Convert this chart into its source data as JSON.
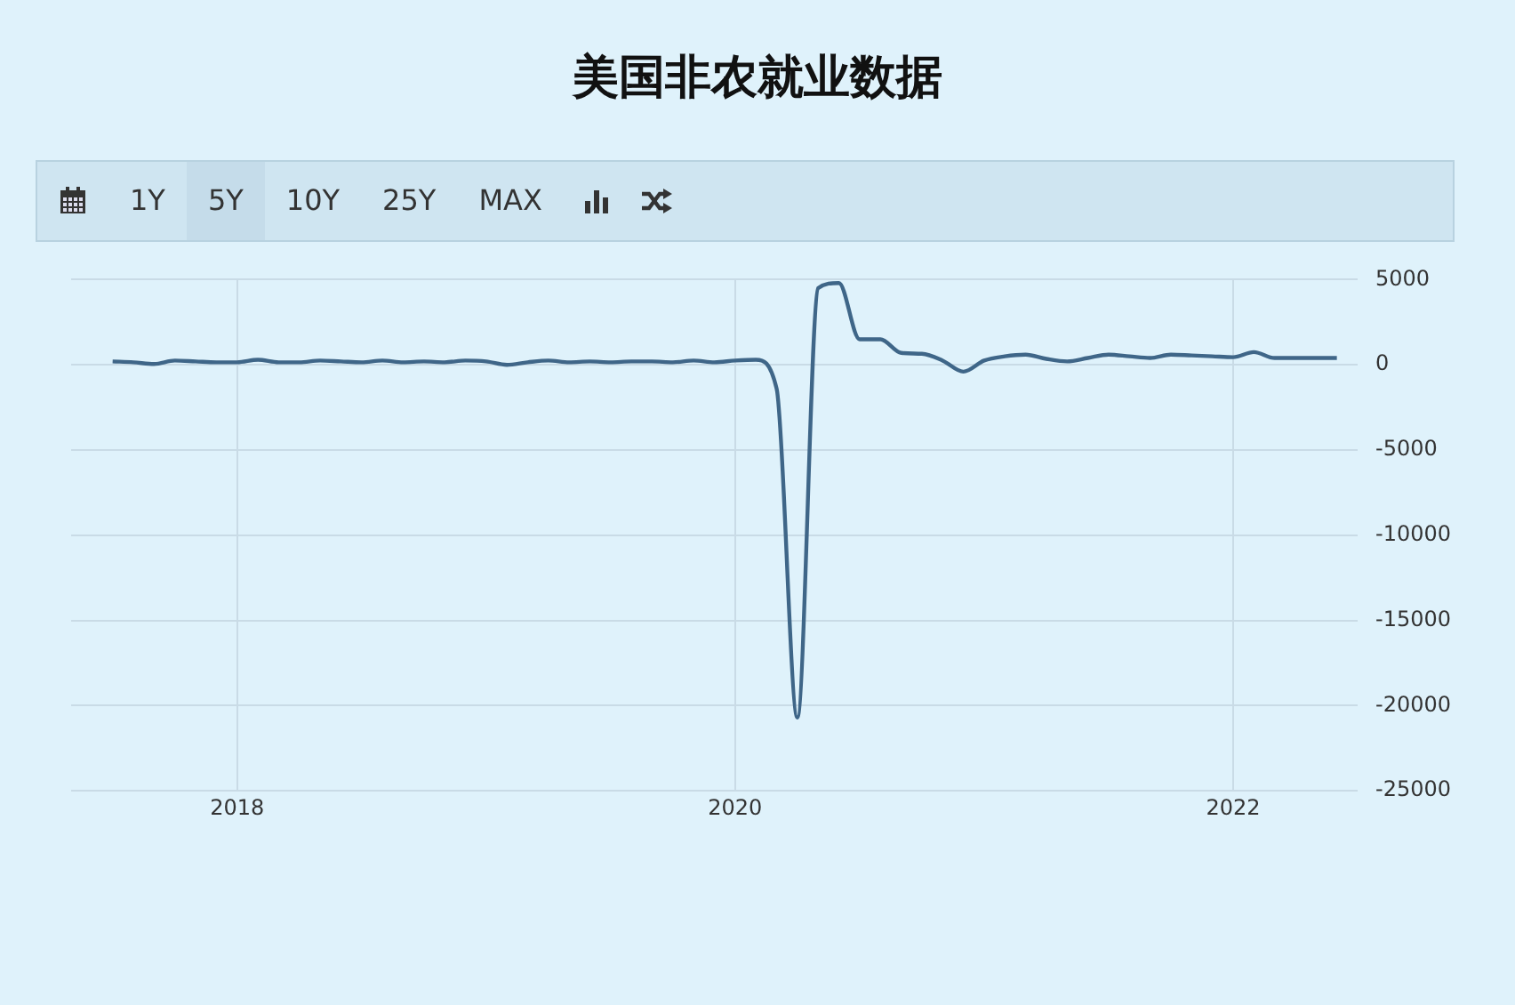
{
  "chart_data": {
    "type": "line",
    "title": "美国非农就业数据",
    "annotations": [
      "1Y",
      "5Y",
      "10Y",
      "25Y",
      "MAX"
    ],
    "x": [
      "2017-07",
      "2017-08",
      "2017-09",
      "2017-10",
      "2017-11",
      "2017-12",
      "2018-01",
      "2018-02",
      "2018-03",
      "2018-04",
      "2018-05",
      "2018-06",
      "2018-07",
      "2018-08",
      "2018-09",
      "2018-10",
      "2018-11",
      "2018-12",
      "2019-01",
      "2019-02",
      "2019-03",
      "2019-04",
      "2019-05",
      "2019-06",
      "2019-07",
      "2019-08",
      "2019-09",
      "2019-10",
      "2019-11",
      "2019-12",
      "2020-01",
      "2020-02",
      "2020-03",
      "2020-04",
      "2020-05",
      "2020-06",
      "2020-07",
      "2020-08",
      "2020-09",
      "2020-10",
      "2020-11",
      "2020-12",
      "2021-01",
      "2021-02",
      "2021-03",
      "2021-04",
      "2021-05",
      "2021-06",
      "2021-07",
      "2021-08",
      "2021-09",
      "2021-10",
      "2021-11",
      "2021-12",
      "2022-01",
      "2022-02",
      "2022-03",
      "2022-04",
      "2022-05",
      "2022-06"
    ],
    "series": [
      {
        "color": "#3f6688",
        "values": [
          200,
          150,
          50,
          250,
          200,
          150,
          150,
          300,
          150,
          150,
          250,
          200,
          150,
          250,
          150,
          200,
          150,
          250,
          200,
          0,
          150,
          250,
          150,
          200,
          150,
          200,
          200,
          150,
          250,
          150,
          250,
          300,
          -1400,
          -20700,
          4500,
          4800,
          1500,
          1500,
          700,
          650,
          250,
          -400,
          250,
          500,
          600,
          350,
          200,
          400,
          600,
          500,
          400,
          600,
          550,
          500,
          450,
          750,
          400,
          400,
          400,
          400
        ]
      }
    ],
    "xlim": [
      "2017-05",
      "2022-07"
    ],
    "xticks": [
      "2018",
      "2020",
      "2022"
    ],
    "ylim": [
      -25000,
      5000
    ],
    "yticks": [
      -25000,
      -20000,
      -15000,
      -10000,
      -5000,
      0,
      5000
    ],
    "grid": true,
    "legend": false,
    "marker": "none",
    "line_style": "solid"
  }
}
